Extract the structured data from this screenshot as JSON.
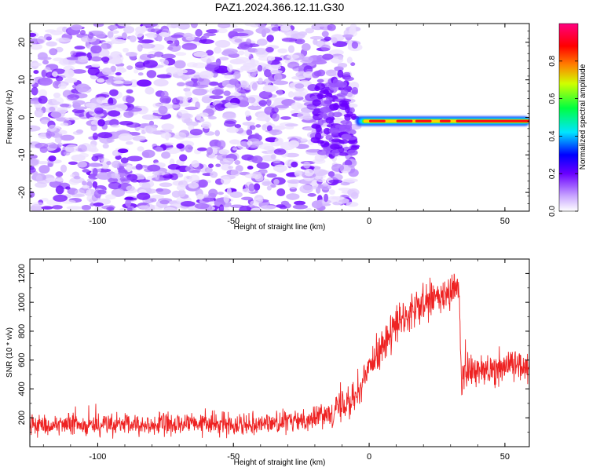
{
  "title": "PAZ1.2024.366.12.11.G30",
  "chart_data": [
    {
      "type": "heatmap",
      "xlabel": "Height of straight line (km)",
      "ylabel": "Frequency (Hz)",
      "xlim": [
        -125,
        59
      ],
      "ylim": [
        -25,
        25
      ],
      "xticks": [
        "-100",
        "-50",
        "0",
        "50"
      ],
      "yticks": [
        "-20",
        "-10",
        "0",
        "10",
        "20"
      ],
      "colorbar": {
        "label": "Normalized spectral amplitude",
        "range": [
          0,
          1
        ],
        "ticks": [
          "0.0",
          "0.2",
          "0.4",
          "0.6",
          "0.8"
        ]
      },
      "features": {
        "noise_region_x": [
          -125,
          -5
        ],
        "signal_band_frequency_hz": -1,
        "signal_band_x": [
          -5,
          59
        ]
      }
    },
    {
      "type": "line",
      "xlabel": "Height of straight line (km)",
      "ylabel": "SNR (10 * v/v)",
      "xlim": [
        -125,
        59
      ],
      "ylim": [
        0,
        1300
      ],
      "xticks": [
        "-100",
        "-50",
        "0",
        "50"
      ],
      "yticks": [
        "200",
        "400",
        "600",
        "800",
        "1000",
        "1200"
      ],
      "series": [
        {
          "color": "#ee2222",
          "trend": [
            {
              "x": -125,
              "y": 150
            },
            {
              "x": -80,
              "y": 150
            },
            {
              "x": -50,
              "y": 160
            },
            {
              "x": -30,
              "y": 170
            },
            {
              "x": -20,
              "y": 200
            },
            {
              "x": -10,
              "y": 280
            },
            {
              "x": -3,
              "y": 400
            },
            {
              "x": 0,
              "y": 550
            },
            {
              "x": 5,
              "y": 700
            },
            {
              "x": 10,
              "y": 830
            },
            {
              "x": 15,
              "y": 920
            },
            {
              "x": 20,
              "y": 980
            },
            {
              "x": 25,
              "y": 1020
            },
            {
              "x": 30,
              "y": 1060
            },
            {
              "x": 33,
              "y": 1100
            },
            {
              "x": 34,
              "y": 500
            },
            {
              "x": 40,
              "y": 520
            },
            {
              "x": 50,
              "y": 560
            },
            {
              "x": 59,
              "y": 580
            }
          ]
        }
      ]
    }
  ]
}
